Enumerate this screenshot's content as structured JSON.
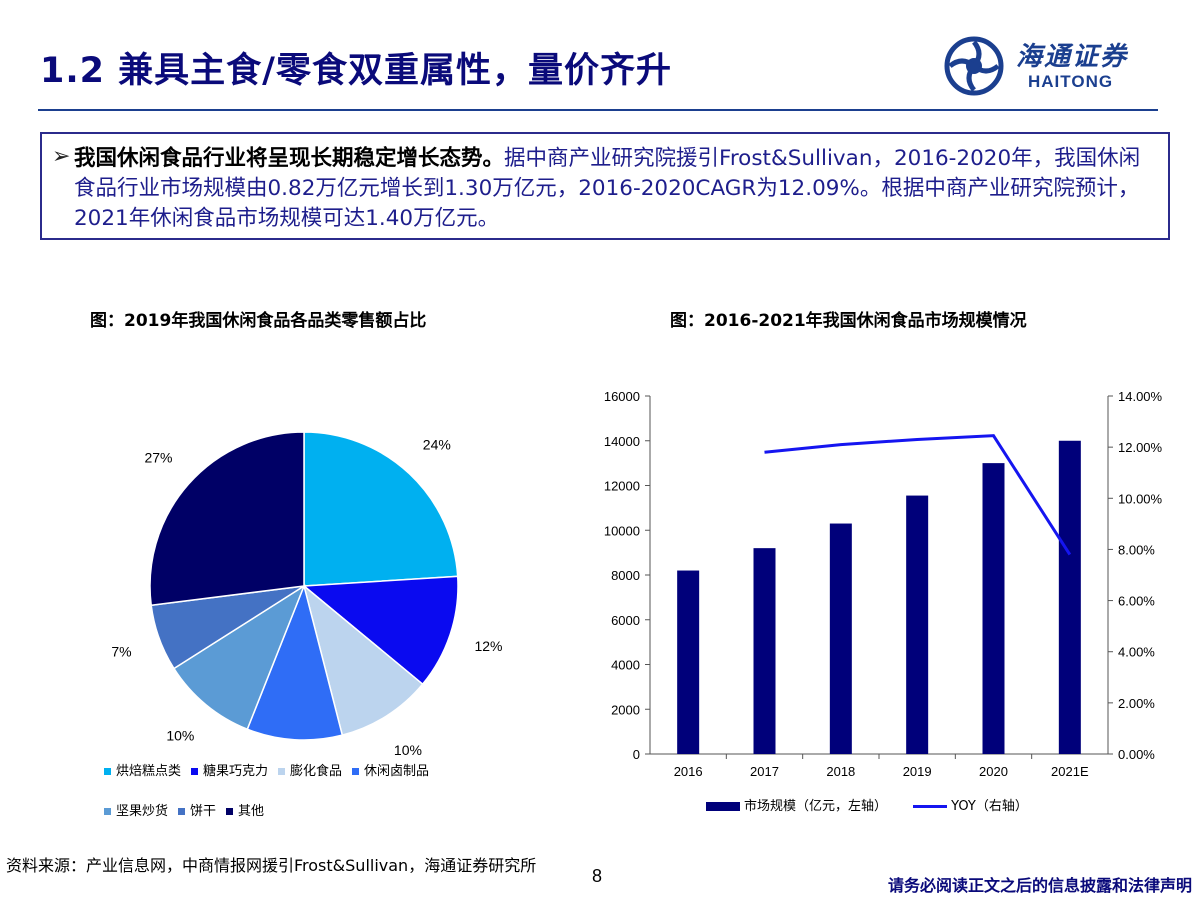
{
  "header": {
    "title": "1.2 兼具主食/零食双重属性，量价齐升",
    "logo_cn": "海通证券",
    "logo_en": "HAITONG"
  },
  "summary": {
    "bullet": "➢",
    "bold_text": "我国休闲食品行业将呈现长期稳定增长态势。",
    "body_text": "据中商产业研究院援引Frost&Sullivan，2016-2020年，我国休闲食品行业市场规模由0.82万亿元增长到1.30万亿元，2016-2020CAGR为12.09%。根据中商产业研究院预计，2021年休闲食品市场规模可达1.40万亿元。"
  },
  "pie_chart": {
    "title": "图：2019年我国休闲食品各品类零售额占比"
  },
  "bar_chart": {
    "title": "图：2016-2021年我国休闲食品市场规模情况",
    "legend_bar": "市场规模（亿元，左轴）",
    "legend_line": "YOY（右轴）"
  },
  "chart_data": [
    {
      "type": "pie",
      "title": "图：2019年我国休闲食品各品类零售额占比",
      "categories": [
        "烘焙糕点类",
        "糖果巧克力",
        "膨化食品",
        "休闲卤制品",
        "坚果炒货",
        "饼干",
        "其他"
      ],
      "values": [
        24,
        12,
        10,
        10,
        10,
        7,
        27
      ],
      "labels": [
        "24%",
        "12%",
        "10%",
        "10%",
        "10%",
        "7%",
        "27%"
      ],
      "colors": [
        "#00b0f0",
        "#0a0af0",
        "#bcd4ee",
        "#2f6df6",
        "#5b9bd5",
        "#4472c4",
        "#000066"
      ],
      "legend_position": "bottom"
    },
    {
      "type": "bar",
      "title": "图：2016-2021年我国休闲食品市场规模情况",
      "categories": [
        "2016",
        "2017",
        "2018",
        "2019",
        "2020",
        "2021E"
      ],
      "series": [
        {
          "name": "市场规模（亿元，左轴）",
          "type": "bar",
          "axis": "left",
          "color": "#00007a",
          "values": [
            8200,
            9200,
            10300,
            11550,
            13000,
            14000
          ]
        },
        {
          "name": "YOY（右轴）",
          "type": "line",
          "axis": "right",
          "color": "#1515f0",
          "values": [
            null,
            11.8,
            12.1,
            12.3,
            12.45,
            7.8
          ]
        }
      ],
      "y_left": {
        "min": 0,
        "max": 16000,
        "ticks": [
          "0",
          "2000",
          "4000",
          "6000",
          "8000",
          "10000",
          "12000",
          "14000",
          "16000"
        ]
      },
      "y_right": {
        "min": 0,
        "max": 14,
        "ticks": [
          "0.00%",
          "2.00%",
          "4.00%",
          "6.00%",
          "8.00%",
          "10.00%",
          "12.00%",
          "14.00%"
        ]
      },
      "grid": false,
      "legend_position": "bottom"
    }
  ],
  "footer": {
    "source": "资料来源：产业信息网，中商情报网援引Frost&Sullivan，海通证券研究所",
    "page": "8",
    "disclaimer": "请务必阅读正文之后的信息披露和法律声明"
  }
}
